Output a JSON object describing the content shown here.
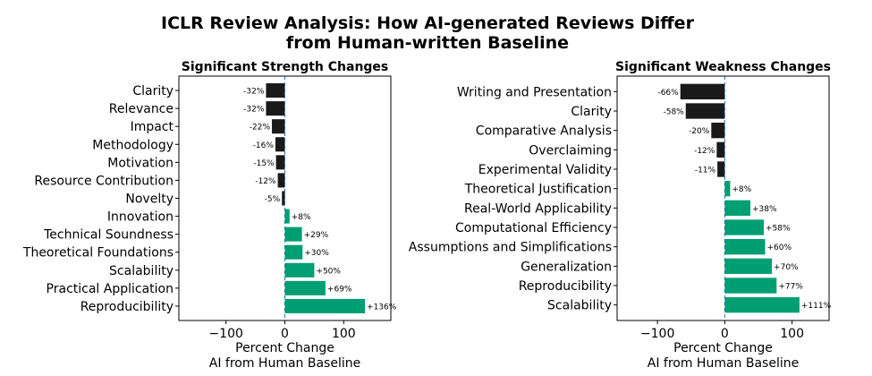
{
  "figure": {
    "title_line1": "ICLR Review Analysis: How AI-generated Reviews Differ",
    "title_line2": "from Human-written Baseline"
  },
  "colors": {
    "negative": "#1a1a1a",
    "positive": "#009e73",
    "zero_line": "#1f77b4"
  },
  "chart_data": [
    {
      "type": "bar",
      "orientation": "horizontal",
      "title": "Significant Strength Changes",
      "xlabel_line1": "Percent Change",
      "xlabel_line2": "AI from Human Baseline",
      "xlim": [
        -180,
        180
      ],
      "xticks": [
        -100,
        0,
        100
      ],
      "xtick_labels": [
        "−100",
        "0",
        "100"
      ],
      "categories": [
        "Clarity",
        "Relevance",
        "Impact",
        "Methodology",
        "Motivation",
        "Resource Contribution",
        "Novelty",
        "Innovation",
        "Technical Soundness",
        "Theoretical Foundations",
        "Scalability",
        "Practical Application",
        "Reproducibility"
      ],
      "values": [
        -32,
        -32,
        -22,
        -16,
        -15,
        -12,
        -5,
        8,
        29,
        30,
        50,
        69,
        136
      ],
      "value_labels": [
        "-32%",
        "-32%",
        "-22%",
        "-16%",
        "-15%",
        "-12%",
        "-5%",
        "+8%",
        "+29%",
        "+30%",
        "+50%",
        "+69%",
        "+136%"
      ]
    },
    {
      "type": "bar",
      "orientation": "horizontal",
      "title": "Significant Weakness Changes",
      "xlabel_line1": "Percent Change",
      "xlabel_line2": "AI from Human Baseline",
      "xlim": [
        -160,
        155
      ],
      "xticks": [
        -100,
        0,
        100
      ],
      "xtick_labels": [
        "−100",
        "0",
        "100"
      ],
      "categories": [
        "Writing and Presentation",
        "Clarity",
        "Comparative Analysis",
        "Overclaiming",
        "Experimental Validity",
        "Theoretical Justification",
        "Real-World Applicability",
        "Computational Efficiency",
        "Assumptions and Simplifications",
        "Generalization",
        "Reproducibility",
        "Scalability"
      ],
      "values": [
        -66,
        -58,
        -20,
        -12,
        -11,
        8,
        38,
        58,
        60,
        70,
        77,
        111
      ],
      "value_labels": [
        "-66%",
        "-58%",
        "-20%",
        "-12%",
        "-11%",
        "+8%",
        "+38%",
        "+58%",
        "+60%",
        "+70%",
        "+77%",
        "+111%"
      ]
    }
  ]
}
